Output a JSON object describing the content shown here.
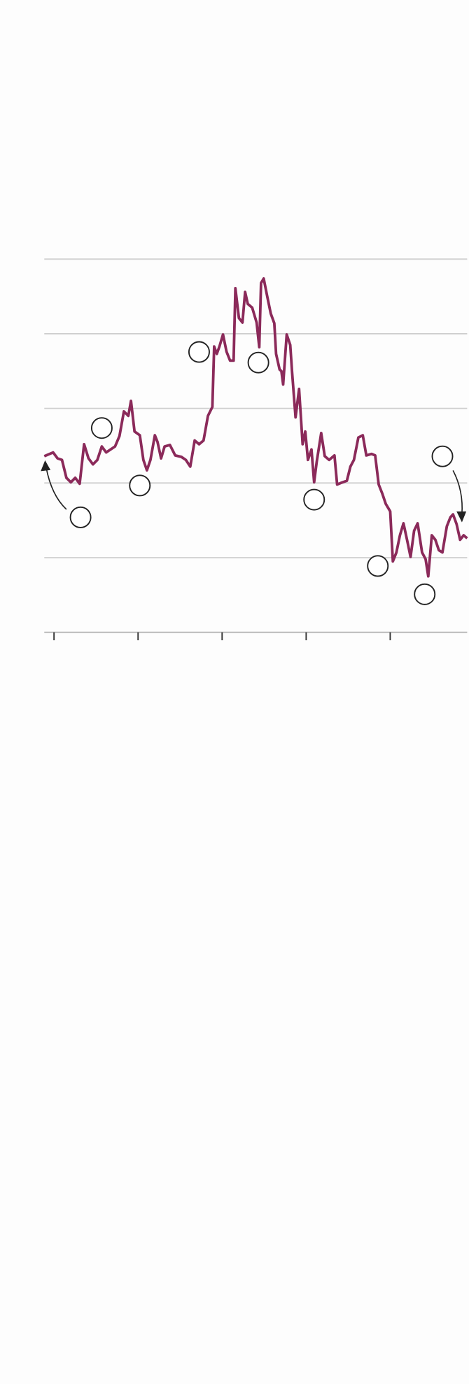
{
  "chart_data": {
    "type": "line",
    "x": [
      0,
      10,
      15,
      20,
      25,
      30,
      35,
      40,
      45,
      50,
      55,
      60,
      65,
      70,
      75,
      80,
      85,
      90,
      95,
      98,
      102,
      108,
      112,
      116,
      120,
      125,
      128,
      132,
      136,
      142,
      148,
      155,
      160,
      165,
      170,
      175,
      180,
      185,
      190,
      192,
      195,
      198,
      202,
      206,
      210,
      214,
      216,
      220,
      224,
      227,
      230,
      235,
      240,
      243,
      245,
      248,
      252,
      256,
      260,
      262,
      266,
      268,
      270,
      274,
      278,
      280,
      284,
      288,
      292,
      295,
      298,
      302,
      305,
      308,
      313,
      317,
      322,
      328,
      331,
      335,
      342,
      346,
      350,
      355,
      360,
      364,
      370,
      374,
      378,
      382,
      386,
      391,
      394,
      398,
      402,
      406,
      410,
      414,
      418,
      422,
      427,
      431,
      434,
      438,
      442,
      446,
      450,
      455,
      459,
      462,
      466,
      470,
      474,
      478
    ],
    "series": [
      {
        "color": "#8b2a5a",
        "values": [
          23.6,
          24.1,
          23.3,
          23.1,
          20.7,
          20.1,
          20.7,
          19.9,
          25.2,
          23.3,
          22.5,
          23.1,
          24.9,
          24.1,
          24.5,
          24.9,
          26.3,
          29.6,
          29.0,
          31.0,
          26.9,
          26.4,
          23.1,
          21.7,
          23.1,
          26.4,
          25.5,
          23.3,
          24.9,
          25.1,
          23.7,
          23.5,
          23.1,
          22.2,
          25.7,
          25.2,
          25.7,
          29.0,
          30.2,
          38.3,
          37.3,
          38.3,
          39.9,
          37.6,
          36.4,
          36.4,
          46.1,
          42.1,
          41.5,
          45.6,
          44.0,
          43.5,
          41.5,
          38.2,
          46.8,
          47.4,
          45.0,
          42.7,
          41.4,
          37.3,
          35.2,
          35.0,
          33.2,
          39.9,
          38.5,
          35.0,
          28.8,
          32.6,
          25.2,
          26.9,
          23.1,
          24.5,
          20.1,
          22.9,
          26.7,
          23.6,
          23.1,
          23.7,
          19.8,
          20.0,
          20.3,
          22.2,
          23.1,
          26.1,
          26.4,
          23.7,
          23.9,
          23.7,
          19.8,
          18.6,
          17.2,
          16.2,
          9.5,
          10.7,
          13.0,
          14.6,
          12.4,
          10.1,
          13.6,
          14.6,
          10.7,
          9.8,
          7.5,
          13.0,
          12.4,
          11.0,
          10.7,
          14.2,
          15.4,
          15.8,
          14.5,
          12.4,
          13.0,
          12.6
        ]
      }
    ],
    "xlim": [
      0,
      478
    ],
    "xticks": [
      11,
      106,
      201,
      296,
      391
    ],
    "ylim": [
      0,
      50
    ],
    "yticks": [
      0,
      10,
      20,
      30,
      40,
      50
    ],
    "grid": true
  }
}
